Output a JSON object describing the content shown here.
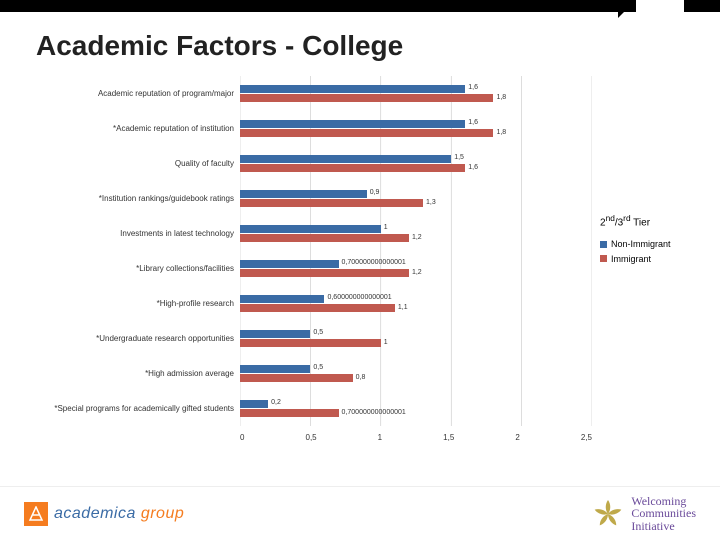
{
  "title": "Academic Factors - College",
  "chart": {
    "type": "bar-horizontal-grouped",
    "x": {
      "min": 0,
      "max": 2.5,
      "step": 0.5,
      "labels": [
        "0",
        "0,5",
        "1",
        "1,5",
        "2",
        "2,5"
      ]
    },
    "series": [
      {
        "name": "Non-Immigrant",
        "color": "#3a6ba5"
      },
      {
        "name": "Immigrant",
        "color": "#c0594f"
      }
    ],
    "legend_title_html": "2<sup>nd</sup>/3<sup>rd</sup> Tier",
    "categories": [
      {
        "label": "Academic reputation of program/major",
        "v": [
          1.6,
          1.8
        ],
        "vlabel": [
          "1,6",
          "1,8"
        ]
      },
      {
        "label": "*Academic reputation of institution",
        "v": [
          1.6,
          1.8
        ],
        "vlabel": [
          "1,6",
          "1,8"
        ]
      },
      {
        "label": "Quality of faculty",
        "v": [
          1.5,
          1.6
        ],
        "vlabel": [
          "1,5",
          "1,6"
        ]
      },
      {
        "label": "*Institution rankings/guidebook ratings",
        "v": [
          0.9,
          1.3
        ],
        "vlabel": [
          "0,9",
          "1,3"
        ]
      },
      {
        "label": "Investments in latest technology",
        "v": [
          1.0,
          1.2
        ],
        "vlabel": [
          "1",
          "1,2"
        ]
      },
      {
        "label": "*Library collections/facilities",
        "v": [
          0.700000000000001,
          1.2
        ],
        "vlabel": [
          "0,700000000000001",
          "1,2"
        ]
      },
      {
        "label": "*High-profile research",
        "v": [
          0.600000000000001,
          1.1
        ],
        "vlabel": [
          "0,600000000000001",
          "1,1"
        ]
      },
      {
        "label": "*Undergraduate research opportunities",
        "v": [
          0.5,
          1.0
        ],
        "vlabel": [
          "0,5",
          "1"
        ]
      },
      {
        "label": "*High admission average",
        "v": [
          0.5,
          0.8
        ],
        "vlabel": [
          "0,5",
          "0,8"
        ]
      },
      {
        "label": "*Special programs for academically gifted students",
        "v": [
          0.2,
          0.700000000000001
        ],
        "vlabel": [
          "0,2",
          "0,700000000000001"
        ]
      }
    ]
  },
  "footer": {
    "left_brand": "academica",
    "left_sub": "group",
    "right_brand_l1": "Welcoming",
    "right_brand_l2": "Communities",
    "right_brand_l3": "Initiative"
  }
}
